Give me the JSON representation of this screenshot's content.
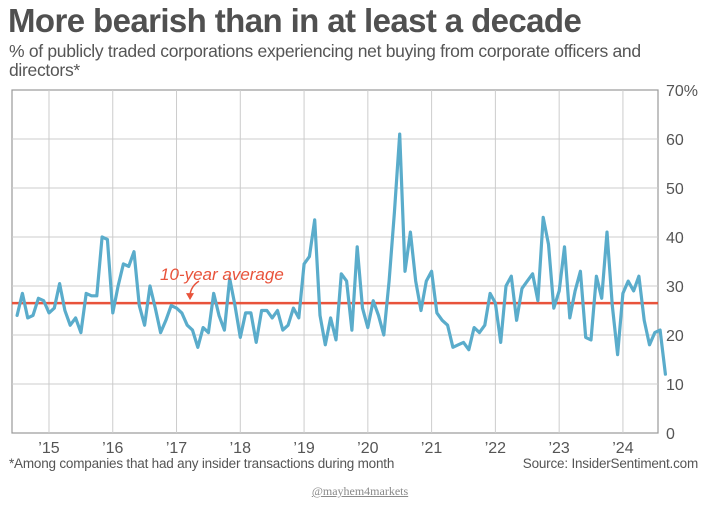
{
  "header": {
    "title": "More bearish than in at least a decade",
    "subtitle": "% of publicly traded corporations experiencing net buying from corporate officers and directors*"
  },
  "footer": {
    "footnote": "*Among companies that had any insider transactions during month",
    "source": "Source: InsiderSentiment.com",
    "credit": "@mayhem4markets"
  },
  "colors": {
    "series": "#5aaccb",
    "average": "#e8533b",
    "annotation": "#e8533b",
    "grid": "#cccccc",
    "axis": "#999999"
  },
  "chart_data": {
    "type": "line",
    "title": "More bearish than in at least a decade",
    "subtitle": "% of publicly traded corporations experiencing net buying from corporate officers and directors*",
    "xlabel": "",
    "ylabel": "",
    "ylim": [
      0,
      70
    ],
    "yticks": [
      0,
      10,
      20,
      30,
      40,
      50,
      60,
      70
    ],
    "ytick_labels": [
      "0",
      "10",
      "20",
      "30",
      "40",
      "50",
      "60",
      "70%"
    ],
    "xlim": [
      2014.42,
      2024.55
    ],
    "xticks": [
      2015,
      2016,
      2017,
      2018,
      2019,
      2020,
      2021,
      2022,
      2023,
      2024
    ],
    "xtick_labels": [
      "’15",
      "’16",
      "’17",
      "’18",
      "’19",
      "’20",
      "’21",
      "’22",
      "’23",
      "’24"
    ],
    "grid": true,
    "legend": "none",
    "start": 2014.5,
    "step": 0.0833333,
    "series": [
      {
        "name": "% of corporations with net insider buying",
        "values": [
          24,
          28.5,
          23.5,
          24,
          27.5,
          27,
          24.5,
          25.5,
          30.5,
          25,
          22,
          23.5,
          20.5,
          28.5,
          28,
          28,
          40,
          39.5,
          24.5,
          30,
          34.5,
          34,
          37,
          26,
          22,
          30,
          25.5,
          20.5,
          23,
          26,
          25.5,
          24.5,
          22,
          21,
          17.5,
          21.5,
          20.5,
          28.5,
          24,
          21,
          31.5,
          26,
          19.5,
          24.5,
          24.5,
          18.5,
          25,
          25,
          23.5,
          25,
          21,
          22,
          25.5,
          23.5,
          34.5,
          36,
          43.5,
          24,
          18,
          23.5,
          19,
          32.5,
          31,
          21,
          38,
          25.5,
          21.5,
          27,
          24,
          20,
          31,
          45,
          61,
          33,
          41,
          31,
          25,
          31,
          33,
          24.5,
          23,
          22,
          17.5,
          18,
          18.5,
          17,
          21.5,
          20.5,
          22,
          28.5,
          26.5,
          18.5,
          30,
          32,
          23,
          29.5,
          31,
          32.5,
          27,
          44,
          38.5,
          25.5,
          29,
          38,
          23.5,
          29,
          33,
          19.5,
          19,
          32,
          27.5,
          41,
          26,
          16,
          28.5,
          31,
          29,
          32,
          23,
          18,
          20.5,
          21,
          12
        ]
      },
      {
        "name": "10-year average",
        "values": [
          26.5
        ]
      }
    ],
    "annotations": [
      {
        "text": "10-year average",
        "target": "10-year average line",
        "arrow": true
      }
    ]
  }
}
